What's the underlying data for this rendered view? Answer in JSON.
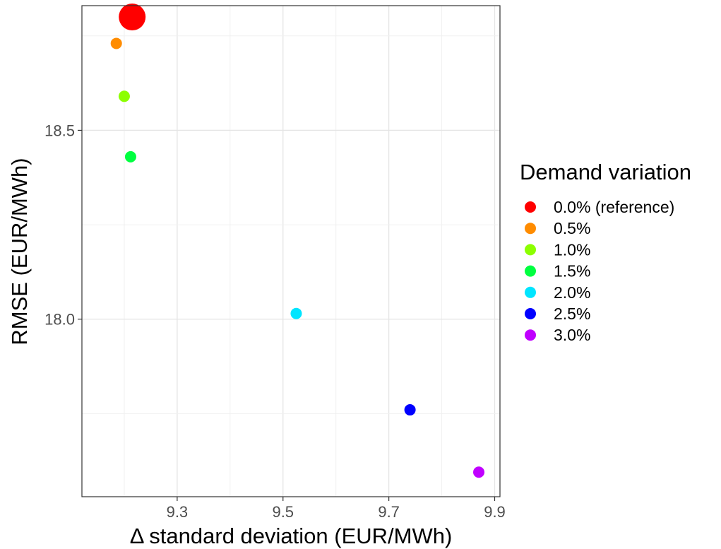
{
  "chart_data": {
    "type": "scatter",
    "title": "",
    "xlabel": "Δ standard deviation (EUR/MWh)",
    "ylabel": "RMSE (EUR/MWh)",
    "xlim": [
      9.12,
      9.91
    ],
    "ylim": [
      17.53,
      18.83
    ],
    "x_ticks": [
      9.3,
      9.5,
      9.7,
      9.9
    ],
    "x_tick_labels": [
      "9.3",
      "9.5",
      "9.7",
      "9.9"
    ],
    "y_ticks": [
      18.0,
      18.5
    ],
    "y_tick_labels": [
      "18.0",
      "18.5"
    ],
    "grid": true,
    "legend": {
      "title": "Demand variation",
      "placement": "right"
    },
    "series": [
      {
        "name": "0.0% (reference)",
        "color": "#ff0000",
        "x": 9.215,
        "y": 18.8,
        "size": "large"
      },
      {
        "name": "0.5%",
        "color": "#ff8c00",
        "x": 9.185,
        "y": 18.73,
        "size": "normal"
      },
      {
        "name": "1.0%",
        "color": "#8cff00",
        "x": 9.2,
        "y": 18.59,
        "size": "normal"
      },
      {
        "name": "1.5%",
        "color": "#00ff40",
        "x": 9.212,
        "y": 18.43,
        "size": "normal"
      },
      {
        "name": "2.0%",
        "color": "#00e5ff",
        "x": 9.525,
        "y": 18.015,
        "size": "normal"
      },
      {
        "name": "2.5%",
        "color": "#0000ff",
        "x": 9.74,
        "y": 17.76,
        "size": "normal"
      },
      {
        "name": "3.0%",
        "color": "#c000ff",
        "x": 9.87,
        "y": 17.595,
        "size": "normal"
      }
    ]
  }
}
